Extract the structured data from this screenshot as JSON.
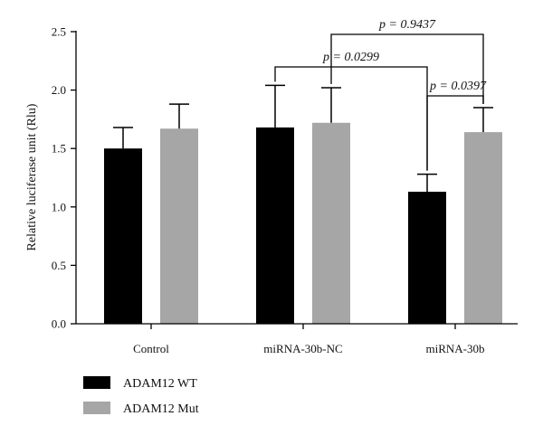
{
  "chart_data": {
    "type": "bar",
    "categories": [
      "Control",
      "miRNA-30b-NC",
      "miRNA-30b"
    ],
    "series": [
      {
        "name": "ADAM12 WT",
        "values": [
          1.5,
          1.68,
          1.13
        ],
        "errors": [
          0.18,
          0.36,
          0.15
        ],
        "color": "#000000"
      },
      {
        "name": "ADAM12 Mut",
        "values": [
          1.67,
          1.72,
          1.64
        ],
        "errors": [
          0.21,
          0.3,
          0.21
        ],
        "color": "#a6a6a6"
      }
    ],
    "xlabel": "",
    "ylabel": "Relative luciferase unit (Rlu)",
    "ylim": [
      0,
      2.5
    ],
    "yticks": [
      "0.0",
      "0.5",
      "1.0",
      "1.5",
      "2.0",
      "2.5"
    ],
    "grid": false,
    "legend_position": "bottom-left",
    "annotations": [
      {
        "text": "p = 0.9437",
        "from": {
          "category": 1,
          "series": 1
        },
        "to": {
          "category": 2,
          "series": 1
        }
      },
      {
        "text": "p = 0.0299",
        "from": {
          "category": 1,
          "series": 0
        },
        "to": {
          "category": 2,
          "series": 0
        }
      },
      {
        "text": "p = 0.0397",
        "from": {
          "category": 2,
          "series": 0
        },
        "to": {
          "category": 2,
          "series": 1
        }
      }
    ]
  }
}
